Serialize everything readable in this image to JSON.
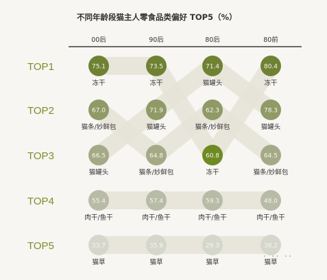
{
  "title": "不同年龄段猫主人零食品类偏好 TOP5（%）",
  "watermark": "· ·· ··",
  "chart_data": {
    "type": "scatter",
    "title": "不同年龄段猫主人零食品类偏好 TOP5（%）",
    "columns": [
      "00后",
      "90后",
      "80后",
      "80前"
    ],
    "ranks": [
      "TOP1",
      "TOP2",
      "TOP3",
      "TOP4",
      "TOP5"
    ],
    "cells": [
      [
        {
          "value": "75.1",
          "label": "冻干"
        },
        {
          "value": "73.5",
          "label": "冻干"
        },
        {
          "value": "71.4",
          "label": "猫罐头"
        },
        {
          "value": "80.4",
          "label": "冻干"
        }
      ],
      [
        {
          "value": "67.0",
          "label": "猫条/妙鲜包"
        },
        {
          "value": "71.9",
          "label": "猫罐头"
        },
        {
          "value": "62.3",
          "label": "猫条/妙鲜包"
        },
        {
          "value": "78.3",
          "label": "猫罐头"
        }
      ],
      [
        {
          "value": "66.5",
          "label": "猫罐头"
        },
        {
          "value": "64.8",
          "label": "猫条/妙鲜包"
        },
        {
          "value": "60.8",
          "label": "冻干"
        },
        {
          "value": "64.5",
          "label": "猫条/妙鲜包"
        }
      ],
      [
        {
          "value": "55.4",
          "label": "肉干/鱼干"
        },
        {
          "value": "57.4",
          "label": "肉干/鱼干"
        },
        {
          "value": "59.3",
          "label": "肉干/鱼干"
        },
        {
          "value": "48.0",
          "label": "肉干/鱼干"
        }
      ],
      [
        {
          "value": "33.7",
          "label": "猫草"
        },
        {
          "value": "35.9",
          "label": "猫草"
        },
        {
          "value": "29.3",
          "label": "猫草"
        },
        {
          "value": "38.2",
          "label": "猫草"
        }
      ]
    ],
    "colors": {
      "top": "#7a8c3a",
      "bubble": [
        "#6f8233",
        "#8f9a66",
        "#a4aa86",
        "#b8bba6",
        "#d6d7cc"
      ],
      "highlight": "#6e8a22",
      "rank_label": "#7d8e2a",
      "band": "#e6e4d8"
    }
  }
}
